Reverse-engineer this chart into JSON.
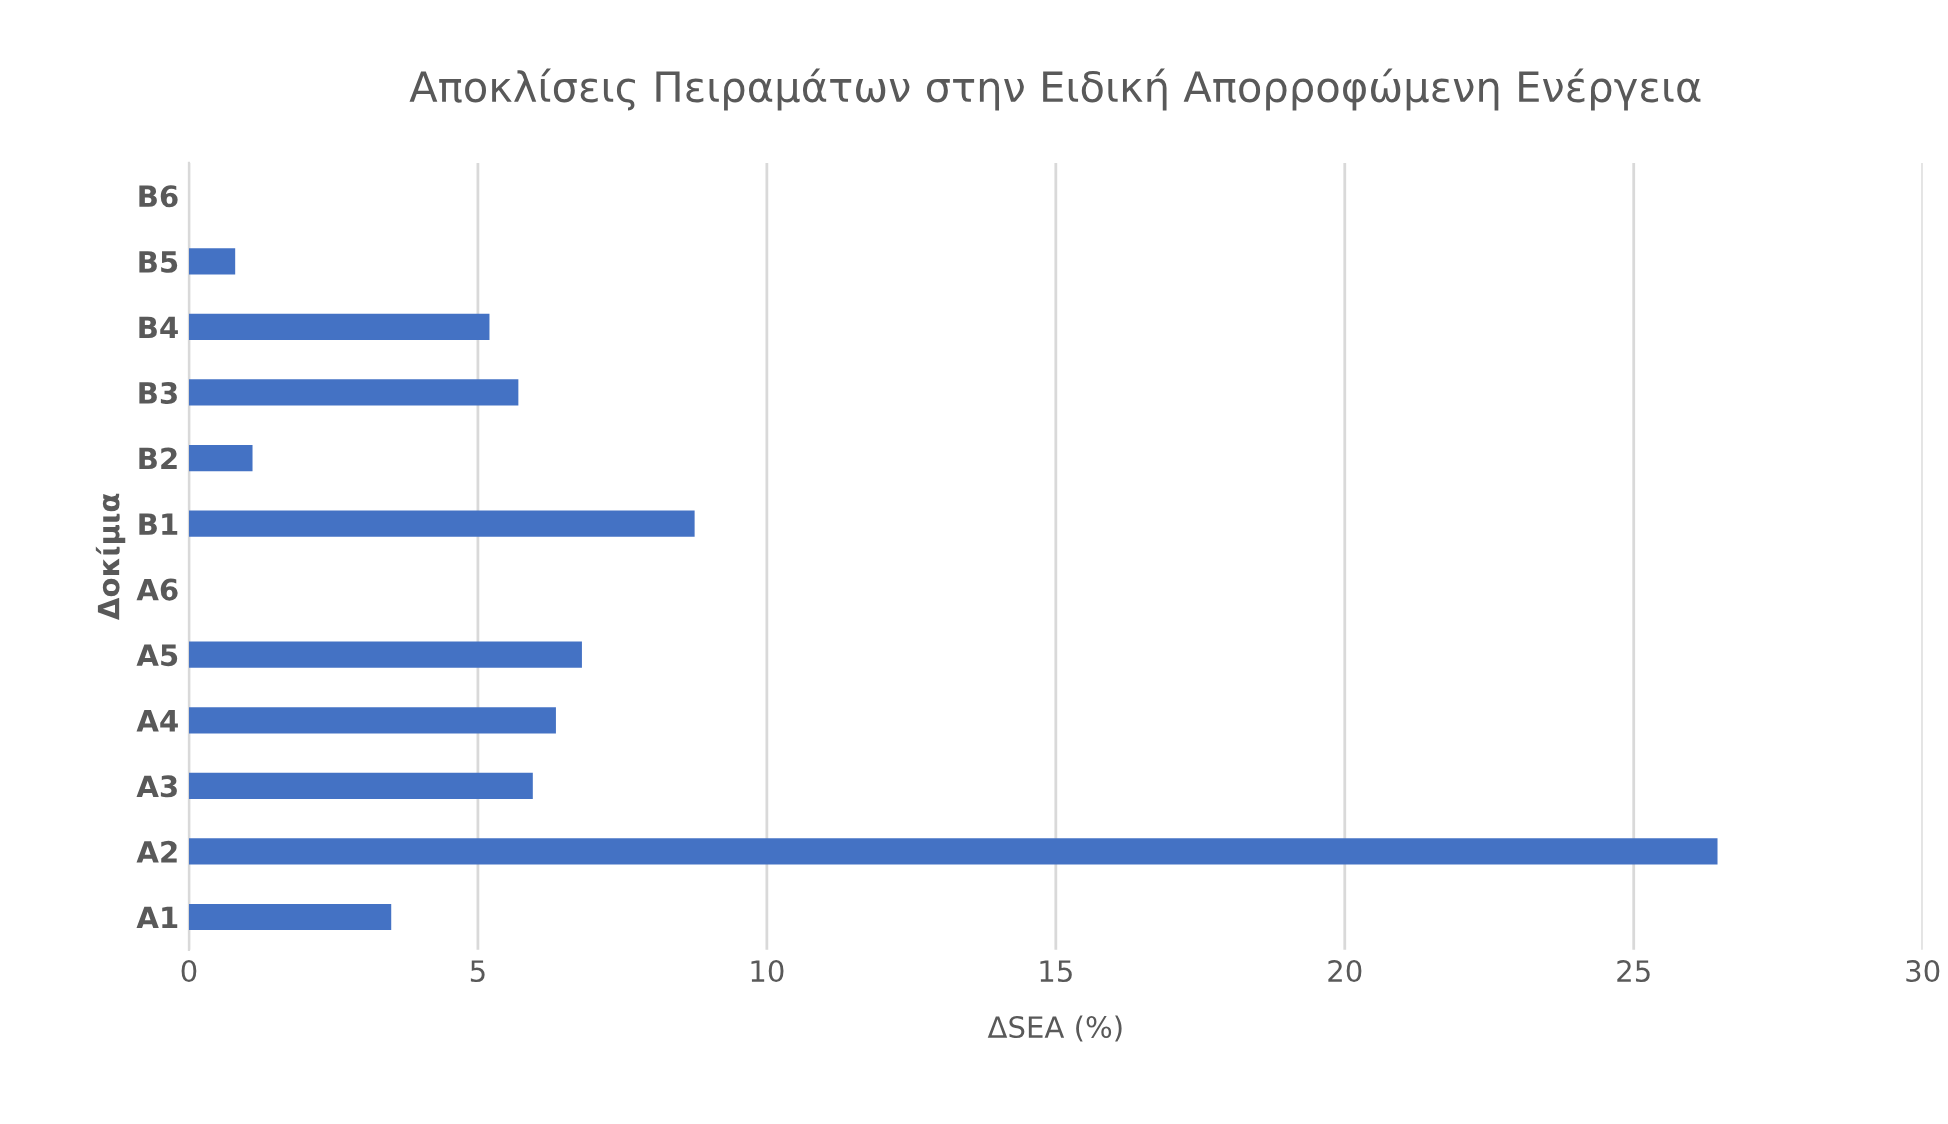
{
  "chart_data": {
    "type": "bar",
    "orientation": "horizontal",
    "title": "Αποκλίσεις Πειραμάτων στην Ειδική Απορροφώμενη Ενέργεια",
    "xlabel": "ΔSEA (%)",
    "ylabel": "Δοκίμια",
    "categories": [
      "B6",
      "B5",
      "B4",
      "B3",
      "B2",
      "B1",
      "A6",
      "A5",
      "A4",
      "A3",
      "A2",
      "A1"
    ],
    "values": [
      null,
      0.8,
      5.2,
      5.7,
      1.1,
      8.75,
      null,
      6.8,
      6.35,
      5.95,
      26.45,
      3.5
    ],
    "color": "#4472c4",
    "xlim": [
      0,
      30
    ],
    "xticks": [
      0,
      5,
      10,
      15,
      20,
      25,
      30
    ],
    "grid": "x"
  }
}
